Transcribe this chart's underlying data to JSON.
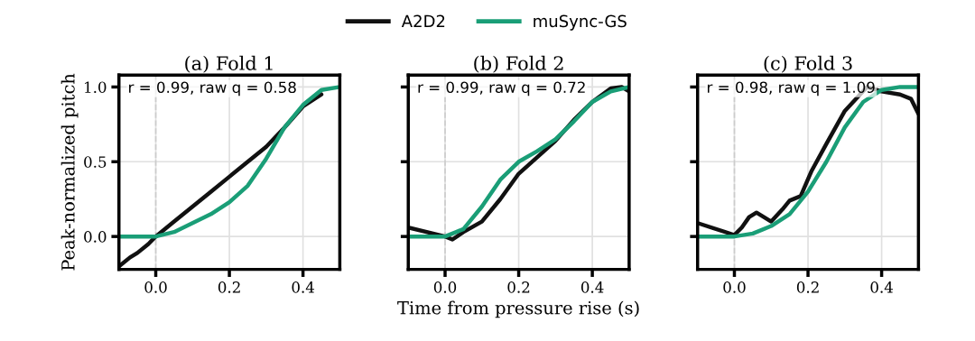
{
  "chart_data": [
    {
      "type": "line",
      "title": "(a) Fold 1",
      "ylabel": "Peak-normalized pitch",
      "xlim": [
        -0.1,
        0.5
      ],
      "ylim": [
        -0.22,
        1.08
      ],
      "xticks": [
        {
          "value": 0.0,
          "label": "0.0"
        },
        {
          "value": 0.2,
          "label": "0.2"
        },
        {
          "value": 0.4,
          "label": "0.4"
        }
      ],
      "yticks": [
        {
          "value": 0.0,
          "label": "0.0"
        },
        0.5,
        {
          "value": 1.0,
          "label": "1.0"
        }
      ],
      "grid": true,
      "legend": "top",
      "annotations": [
        "r = 0.99, raw q = 0.58"
      ],
      "ref_lines": [
        {
          "axis": "x",
          "value": 0,
          "color": "#cccccc",
          "line_style": "dashed"
        }
      ],
      "series": [
        {
          "name": "A2D2",
          "color": "#111111",
          "x": [
            -0.1,
            -0.07,
            -0.05,
            -0.02,
            0.0,
            0.05,
            0.1,
            0.15,
            0.2,
            0.25,
            0.3,
            0.35,
            0.4,
            0.45
          ],
          "values": [
            -0.2,
            -0.14,
            -0.11,
            -0.05,
            0.0,
            0.1,
            0.2,
            0.3,
            0.4,
            0.5,
            0.6,
            0.73,
            0.87,
            0.95
          ]
        },
        {
          "name": "muSync-GS",
          "color": "#1a9e77",
          "x": [
            -0.1,
            -0.05,
            0.0,
            0.05,
            0.1,
            0.15,
            0.2,
            0.25,
            0.3,
            0.35,
            0.4,
            0.45,
            0.5
          ],
          "values": [
            0.0,
            0.0,
            0.0,
            0.03,
            0.09,
            0.15,
            0.23,
            0.34,
            0.52,
            0.73,
            0.88,
            0.98,
            1.0
          ]
        }
      ]
    },
    {
      "type": "line",
      "title": "(b) Fold 2",
      "xlabel": "Time from pressure rise (s)",
      "xlim": [
        -0.1,
        0.5
      ],
      "ylim": [
        -0.22,
        1.08
      ],
      "xticks": [
        {
          "value": 0.0,
          "label": "0.0"
        },
        {
          "value": 0.2,
          "label": "0.2"
        },
        {
          "value": 0.4,
          "label": "0.4"
        }
      ],
      "yticks": [
        {
          "value": 0.0,
          "label": null
        },
        {
          "value": 0.5,
          "label": null
        },
        {
          "value": 1.0,
          "label": null
        }
      ],
      "tick_labels": "x",
      "grid": true,
      "annotations": [
        "r = 0.99, raw q = 0.72"
      ],
      "ref_lines": [
        {
          "axis": "x",
          "value": 0,
          "color": "#cccccc",
          "line_style": "dashed"
        }
      ],
      "series": [
        {
          "name": "A2D2",
          "color": "#111111",
          "x": [
            -0.1,
            0.0,
            0.02,
            0.05,
            0.1,
            0.15,
            0.2,
            0.25,
            0.3,
            0.35,
            0.4,
            0.45,
            0.48,
            0.5
          ],
          "values": [
            0.06,
            0.0,
            -0.02,
            0.03,
            0.1,
            0.25,
            0.42,
            0.53,
            0.64,
            0.78,
            0.9,
            0.99,
            1.0,
            0.97
          ]
        },
        {
          "name": "muSync-GS",
          "color": "#1a9e77",
          "x": [
            -0.1,
            0.0,
            0.05,
            0.1,
            0.15,
            0.2,
            0.25,
            0.3,
            0.35,
            0.4,
            0.45,
            0.5
          ],
          "values": [
            0.0,
            0.0,
            0.05,
            0.2,
            0.38,
            0.5,
            0.57,
            0.65,
            0.77,
            0.9,
            0.97,
            1.0
          ]
        }
      ]
    },
    {
      "type": "line",
      "title": "(c) Fold 3",
      "xlim": [
        -0.1,
        0.5
      ],
      "ylim": [
        -0.22,
        1.08
      ],
      "xticks": [
        {
          "value": 0.0,
          "label": "0.0"
        },
        {
          "value": 0.2,
          "label": "0.2"
        },
        {
          "value": 0.4,
          "label": "0.4"
        }
      ],
      "yticks": [
        {
          "value": 0.0,
          "label": null
        },
        {
          "value": 0.5,
          "label": null
        },
        {
          "value": 1.0,
          "label": null
        }
      ],
      "tick_labels": "x",
      "grid": true,
      "annotations": [
        "r = 0.98, raw q = 1.09"
      ],
      "ref_lines": [
        {
          "axis": "x",
          "value": 0,
          "color": "#cccccc",
          "line_style": "dashed"
        }
      ],
      "series": [
        {
          "name": "A2D2",
          "color": "#111111",
          "x": [
            -0.1,
            0.0,
            0.02,
            0.04,
            0.06,
            0.1,
            0.13,
            0.15,
            0.18,
            0.21,
            0.25,
            0.3,
            0.36,
            0.4,
            0.45,
            0.48,
            0.5
          ],
          "values": [
            0.09,
            0.01,
            0.06,
            0.13,
            0.16,
            0.1,
            0.18,
            0.24,
            0.27,
            0.44,
            0.62,
            0.84,
            1.0,
            0.97,
            0.95,
            0.92,
            0.82
          ]
        },
        {
          "name": "muSync-GS",
          "color": "#1a9e77",
          "x": [
            -0.1,
            0.0,
            0.05,
            0.1,
            0.15,
            0.2,
            0.25,
            0.3,
            0.35,
            0.4,
            0.45,
            0.5
          ],
          "values": [
            0.0,
            0.0,
            0.02,
            0.07,
            0.15,
            0.3,
            0.5,
            0.73,
            0.9,
            0.98,
            1.0,
            1.0
          ]
        }
      ]
    }
  ]
}
